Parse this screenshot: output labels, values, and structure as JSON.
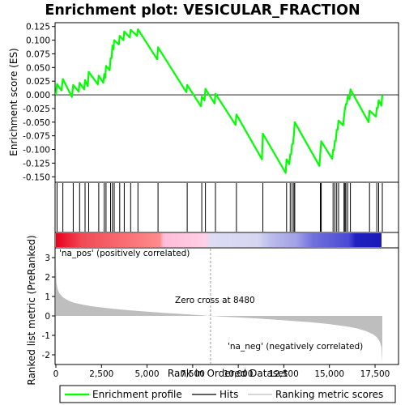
{
  "chart_data": {
    "type": "line",
    "title": "Enrichment plot: VESICULAR_FRACTION",
    "xlabel": "Rank in Ordered Dataset",
    "colors": {
      "enrichment_line": "#00ff00",
      "hits": "#000000",
      "metric_fill": "#bebebe",
      "pos_label": "#cc0000",
      "neg_label": "#0000cc",
      "zero_cross_line": "#9aa0b8"
    },
    "x_ticks": [
      "0",
      "2,500",
      "5,000",
      "7,500",
      "10,000",
      "12,500",
      "15,000",
      "17,500"
    ],
    "x_tick_values": [
      0,
      2500,
      5000,
      7500,
      10000,
      12500,
      15000,
      17500
    ],
    "xlim": [
      0,
      17900
    ],
    "panels": {
      "enrichment": {
        "ylabel": "Enrichment score (ES)",
        "ylim": [
          -0.16,
          0.132
        ],
        "y_ticks": [
          "0.125",
          "0.100",
          "0.075",
          "0.050",
          "0.025",
          "0.000",
          "-0.025",
          "-0.050",
          "-0.075",
          "-0.100",
          "-0.125",
          "-0.150"
        ],
        "y_tick_values": [
          0.125,
          0.1,
          0.075,
          0.05,
          0.025,
          0.0,
          -0.025,
          -0.05,
          -0.075,
          -0.1,
          -0.125,
          -0.15
        ],
        "points": [
          [
            0,
            0.0
          ],
          [
            60,
            0.02
          ],
          [
            300,
            0.008
          ],
          [
            380,
            0.029
          ],
          [
            880,
            -0.004
          ],
          [
            950,
            0.018
          ],
          [
            1250,
            0.006
          ],
          [
            1300,
            0.022
          ],
          [
            1550,
            0.01
          ],
          [
            1600,
            0.027
          ],
          [
            1750,
            0.016
          ],
          [
            1800,
            0.042
          ],
          [
            2300,
            0.019
          ],
          [
            2350,
            0.035
          ],
          [
            2600,
            0.022
          ],
          [
            2650,
            0.038
          ],
          [
            2700,
            0.031
          ],
          [
            2750,
            0.053
          ],
          [
            2950,
            0.045
          ],
          [
            3000,
            0.067
          ],
          [
            3050,
            0.067
          ],
          [
            3100,
            0.09
          ],
          [
            3150,
            0.083
          ],
          [
            3200,
            0.1
          ],
          [
            3450,
            0.092
          ],
          [
            3500,
            0.108
          ],
          [
            3700,
            0.1
          ],
          [
            3750,
            0.116
          ],
          [
            4050,
            0.105
          ],
          [
            4100,
            0.119
          ],
          [
            4450,
            0.108
          ],
          [
            4500,
            0.12
          ],
          [
            5550,
            0.065
          ],
          [
            5600,
            0.087
          ],
          [
            7150,
            0.005
          ],
          [
            7200,
            0.018
          ],
          [
            7950,
            -0.021
          ],
          [
            8000,
            -0.003
          ],
          [
            8150,
            -0.01
          ],
          [
            8200,
            0.011
          ],
          [
            8700,
            -0.016
          ],
          [
            8750,
            0.002
          ],
          [
            9850,
            -0.055
          ],
          [
            9900,
            -0.036
          ],
          [
            11300,
            -0.118
          ],
          [
            11350,
            -0.071
          ],
          [
            12600,
            -0.143
          ],
          [
            12650,
            -0.118
          ],
          [
            12800,
            -0.127
          ],
          [
            12850,
            -0.109
          ],
          [
            12900,
            -0.109
          ],
          [
            12950,
            -0.09
          ],
          [
            13000,
            -0.09
          ],
          [
            13050,
            -0.073
          ],
          [
            13100,
            -0.05
          ],
          [
            14450,
            -0.13
          ],
          [
            14500,
            -0.106
          ],
          [
            14550,
            -0.085
          ],
          [
            15150,
            -0.117
          ],
          [
            15200,
            -0.101
          ],
          [
            15250,
            -0.101
          ],
          [
            15300,
            -0.084
          ],
          [
            15350,
            -0.084
          ],
          [
            15400,
            -0.064
          ],
          [
            15450,
            -0.064
          ],
          [
            15500,
            -0.047
          ],
          [
            15750,
            -0.056
          ],
          [
            15800,
            -0.04
          ],
          [
            15850,
            -0.026
          ],
          [
            15900,
            -0.017
          ],
          [
            15950,
            -0.017
          ],
          [
            16000,
            -0.003
          ],
          [
            16100,
            -0.008
          ],
          [
            16150,
            0.01
          ],
          [
            17150,
            -0.05
          ],
          [
            17200,
            -0.029
          ],
          [
            17550,
            -0.04
          ],
          [
            17600,
            -0.024
          ],
          [
            17650,
            -0.024
          ],
          [
            17700,
            -0.01
          ],
          [
            17850,
            -0.02
          ],
          [
            17900,
            0.0
          ]
        ]
      },
      "hits": {
        "positions": [
          60,
          380,
          950,
          1300,
          1600,
          1800,
          2350,
          2650,
          2750,
          3000,
          3100,
          3200,
          3500,
          3750,
          4100,
          4500,
          5600,
          7200,
          8000,
          8200,
          8750,
          9900,
          11350,
          12650,
          12850,
          12950,
          13050,
          13100,
          14500,
          14550,
          15200,
          15300,
          15400,
          15500,
          15800,
          15850,
          15900,
          16000,
          16150,
          17200,
          17600,
          17700,
          17900
        ]
      },
      "metric": {
        "ylabel": "Ranked list metric (PreRanked)",
        "ylim": [
          -2.5,
          3.5
        ],
        "y_ticks": [
          "3",
          "2",
          "1",
          "0",
          "-1",
          "-2"
        ],
        "y_tick_values": [
          3,
          2,
          1,
          0,
          -1,
          -2
        ],
        "zero_cross_label": "Zero cross at 8480",
        "zero_cross": 8480,
        "pos_label": "'na_pos' (positively correlated)",
        "neg_label": "'na_neg' (negatively correlated)",
        "profile": [
          [
            0,
            2.6
          ],
          [
            30,
            1.7
          ],
          [
            100,
            1.35
          ],
          [
            200,
            1.15
          ],
          [
            400,
            0.95
          ],
          [
            700,
            0.78
          ],
          [
            1000,
            0.68
          ],
          [
            1500,
            0.57
          ],
          [
            2000,
            0.49
          ],
          [
            3000,
            0.38
          ],
          [
            4000,
            0.29
          ],
          [
            5000,
            0.22
          ],
          [
            6000,
            0.15
          ],
          [
            7000,
            0.09
          ],
          [
            8000,
            0.03
          ],
          [
            8480,
            0.0
          ],
          [
            9000,
            -0.03
          ],
          [
            10000,
            -0.08
          ],
          [
            11000,
            -0.13
          ],
          [
            12000,
            -0.19
          ],
          [
            13000,
            -0.26
          ],
          [
            14000,
            -0.33
          ],
          [
            15000,
            -0.42
          ],
          [
            16000,
            -0.55
          ],
          [
            16500,
            -0.64
          ],
          [
            17000,
            -0.78
          ],
          [
            17400,
            -0.95
          ],
          [
            17600,
            -1.1
          ],
          [
            17750,
            -1.3
          ],
          [
            17850,
            -1.6
          ],
          [
            17900,
            -2.4
          ]
        ]
      }
    },
    "legend": [
      "Enrichment profile",
      "Hits",
      "Ranking metric scores"
    ]
  }
}
